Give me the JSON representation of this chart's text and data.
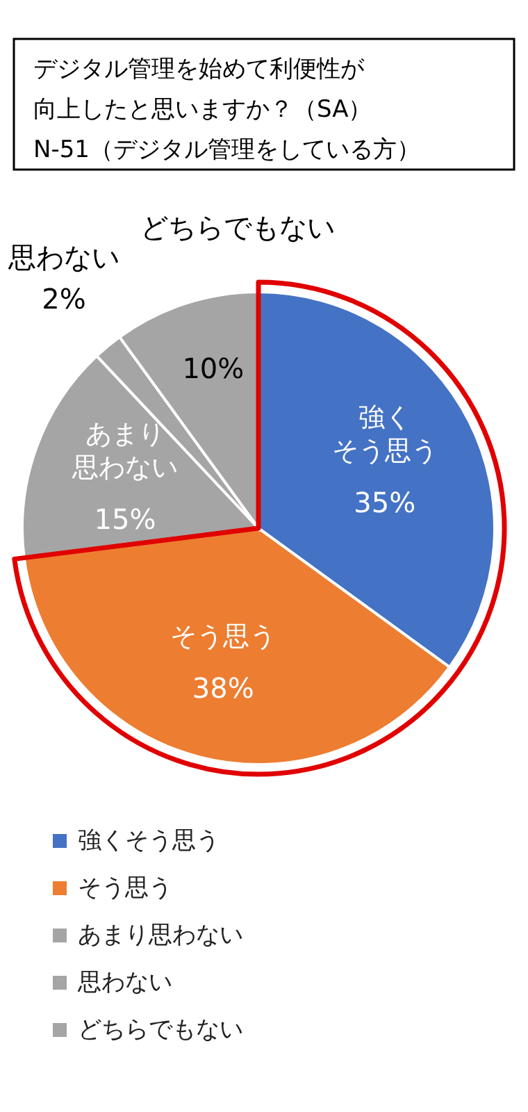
{
  "chart_data": {
    "type": "pie",
    "title": "デジタル管理を始めて利便性が向上したと思いますか？（SA）",
    "subtitle": "N-51（デジタル管理をしている方）",
    "categories": [
      "強くそう思う",
      "そう思う",
      "あまり思わない",
      "思わない",
      "どちらでもない"
    ],
    "values": [
      35,
      38,
      15,
      2,
      10
    ],
    "value_labels": [
      "35%",
      "38%",
      "15%",
      "2%",
      "10%"
    ],
    "colors": [
      "#4472c4",
      "#ed7d31",
      "#a5a5a5",
      "#a5a5a5",
      "#a5a5a5"
    ],
    "annotations": [
      "強くそう思う",
      "そう思う",
      "あまり思わない",
      "思わない",
      "どちらでもない"
    ],
    "legend": "bottom"
  }
}
